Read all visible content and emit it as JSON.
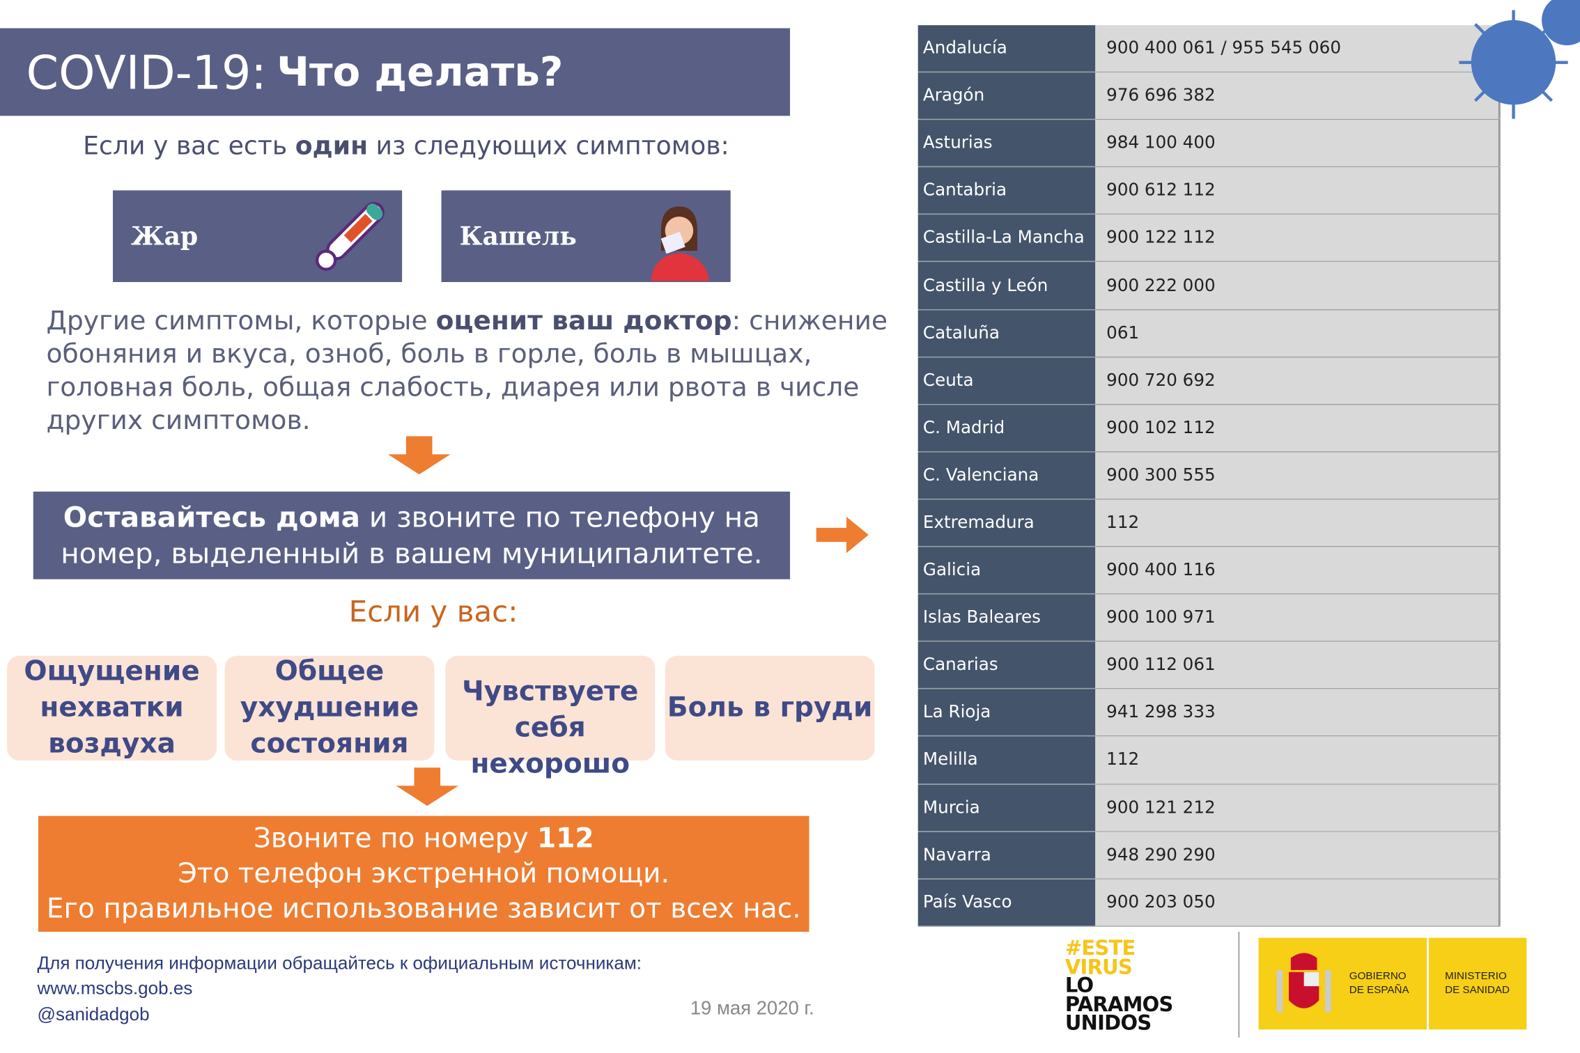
{
  "header": {
    "title_prefix": "COVID-19:",
    "title_main": "Что делать?"
  },
  "intro": {
    "before": "Если у вас есть ",
    "bold": "один",
    "after": "  из следующих симптомов:"
  },
  "symptoms": [
    {
      "label": "Жар",
      "icon": "thermometer-icon"
    },
    {
      "label": "Кашель",
      "icon": "sneezing-person-icon"
    }
  ],
  "other": {
    "before": "Другие симптомы, которые ",
    "bold": "оценит ваш доктор",
    "after": ": снижение обоняния и вкуса, озноб, боль в горле, боль в мышцах, головная боль, общая слабость, диарея или рвота в числе других симптомов."
  },
  "stay_home": {
    "bold": "Оставайтесь дома",
    "rest": " и звоните по телефону на номер, выделенный в вашем муниципалитете."
  },
  "if_you": "Если у вас:",
  "emergencies": [
    "Ощущение нехватки воздуха",
    "Общее ухудшение состояния",
    "Чувствуете себя нехорошо",
    "Боль в груди"
  ],
  "call": {
    "line1_before": "Звоните по номеру ",
    "line1_bold": "112",
    "line2": "Это телефон экстренной помощи.",
    "line3": "Его правильное использование зависит от всех нас."
  },
  "footer": {
    "info": "Для получения информации обращайтесь к официальным источникам:",
    "website": "www.mscbs.gob.es",
    "twitter": "@sanidadgob",
    "date": "19 мая 2020 г."
  },
  "phones": [
    {
      "region": "Andalucía",
      "phone": "900 400 061 / 955 545 060"
    },
    {
      "region": "Aragón",
      "phone": "976 696 382"
    },
    {
      "region": "Asturias",
      "phone": "984 100 400"
    },
    {
      "region": "Cantabria",
      "phone": "900 612 112"
    },
    {
      "region": "Castilla-La Mancha",
      "phone": "900 122 112"
    },
    {
      "region": "Castilla y León",
      "phone": "900 222 000"
    },
    {
      "region": "Cataluña",
      "phone": "061"
    },
    {
      "region": "Ceuta",
      "phone": "900 720 692"
    },
    {
      "region": "C. Madrid",
      "phone": "900 102 112"
    },
    {
      "region": "C. Valenciana",
      "phone": "900 300 555"
    },
    {
      "region": "Extremadura",
      "phone": "112"
    },
    {
      "region": "Galicia",
      "phone": "900 400 116"
    },
    {
      "region": "Islas Baleares",
      "phone": "900 100 971"
    },
    {
      "region": "Canarias",
      "phone": "900 112 061"
    },
    {
      "region": "La Rioja",
      "phone": "941 298 333"
    },
    {
      "region": "Melilla",
      "phone": "112"
    },
    {
      "region": "Murcia",
      "phone": "900 121 212"
    },
    {
      "region": "Navarra",
      "phone": "948 290 290"
    },
    {
      "region": "País Vasco",
      "phone": "900 203 050"
    }
  ],
  "logos": {
    "campaign": [
      "#ESTE",
      "VIRUS",
      "LO",
      "PARAMOS",
      "UNIDOS"
    ],
    "gobierno": [
      "GOBIERNO",
      "DE ESPAÑA"
    ],
    "ministerio": [
      "MINISTERIO",
      "DE SANIDAD"
    ]
  },
  "colors": {
    "navy": "#5a5f86",
    "orange": "#ee7d31",
    "peach": "#fbe3d6",
    "table_region": "#44546a",
    "table_phone": "#d9d9d9",
    "yellow": "#f6cf16"
  }
}
